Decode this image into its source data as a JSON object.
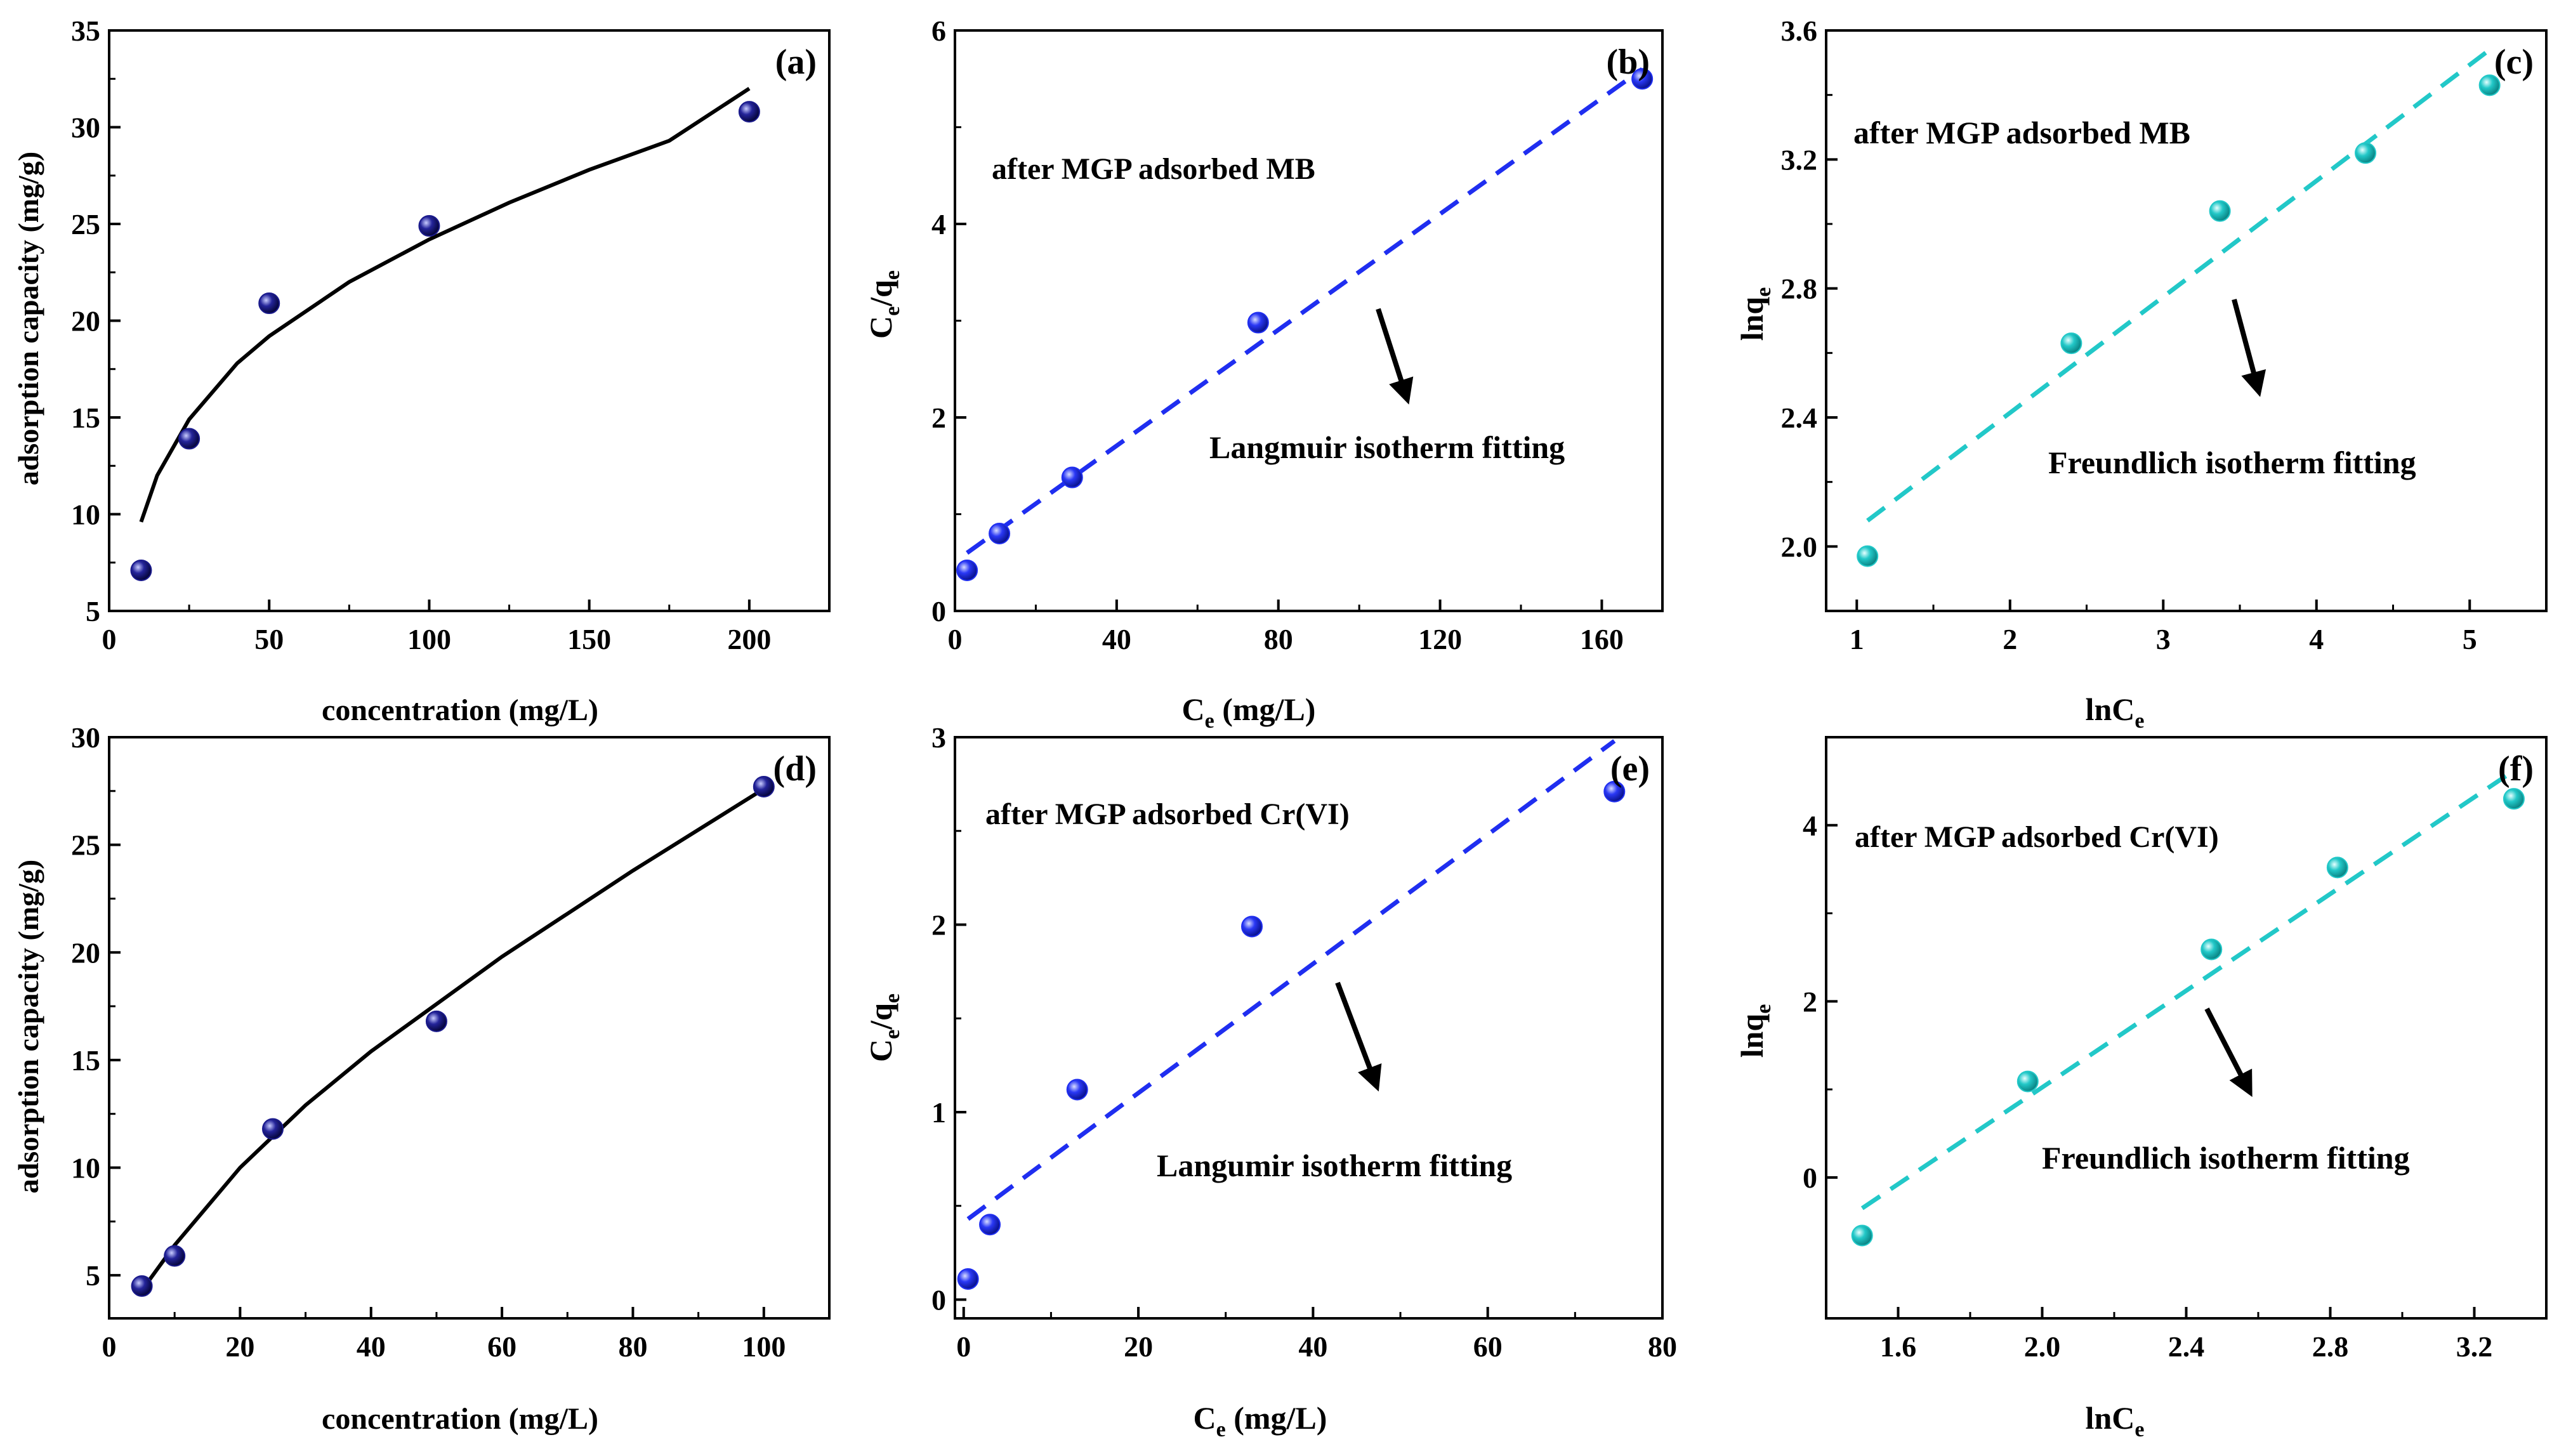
{
  "figure": {
    "colors": {
      "navy": "#1a1a8c",
      "blue": "#1f2ef0",
      "cyan": "#22c8c8",
      "axis": "#000000"
    }
  },
  "chart_data": [
    {
      "id": "a",
      "type": "scatter",
      "panel_label": "(a)",
      "xlabel": "concentration (mg/L)",
      "ylabel": "adsorption capacity (mg/g)",
      "xlim": [
        0,
        225
      ],
      "ylim": [
        5,
        35
      ],
      "xticks": [
        0,
        50,
        100,
        150,
        200
      ],
      "yticks": [
        5,
        10,
        15,
        20,
        25,
        30,
        35
      ],
      "xtick_labels": [
        "0",
        "50",
        "100",
        "150",
        "200"
      ],
      "ytick_labels": [
        "5",
        "10",
        "15",
        "20",
        "25",
        "30",
        "35"
      ],
      "points": [
        [
          10,
          7.1
        ],
        [
          25,
          13.9
        ],
        [
          50,
          20.9
        ],
        [
          100,
          24.9
        ],
        [
          200,
          30.8
        ]
      ],
      "marker_color": "navy",
      "fit": {
        "style": "solid",
        "color": "axis",
        "points": [
          [
            10,
            9.6
          ],
          [
            15,
            12.0
          ],
          [
            25,
            14.9
          ],
          [
            40,
            17.8
          ],
          [
            50,
            19.2
          ],
          [
            75,
            22.0
          ],
          [
            100,
            24.2
          ],
          [
            125,
            26.1
          ],
          [
            150,
            27.8
          ],
          [
            175,
            29.3
          ],
          [
            200,
            32.0
          ]
        ]
      },
      "annotations": []
    },
    {
      "id": "b",
      "type": "scatter",
      "panel_label": "(b)",
      "xlabel": "Ce (mg/L)",
      "ylabel": "Ce/qe",
      "xlim": [
        0,
        175
      ],
      "ylim": [
        0,
        6
      ],
      "xticks": [
        0,
        40,
        80,
        120,
        160
      ],
      "yticks": [
        0,
        2,
        4,
        6
      ],
      "xtick_labels": [
        "0",
        "40",
        "80",
        "120",
        "160"
      ],
      "ytick_labels": [
        "0",
        "2",
        "4",
        "6"
      ],
      "points": [
        [
          3,
          0.42
        ],
        [
          11,
          0.8
        ],
        [
          29,
          1.38
        ],
        [
          75,
          2.98
        ],
        [
          170,
          5.5
        ]
      ],
      "marker_color": "blue",
      "fit": {
        "style": "dashed",
        "color": "blue",
        "points": [
          [
            3,
            0.6
          ],
          [
            170,
            5.6
          ]
        ]
      },
      "annotations": [
        "after MGP adsorbed MB",
        "Langmuir isotherm fitting"
      ]
    },
    {
      "id": "c",
      "type": "scatter",
      "panel_label": "(c)",
      "xlabel": "lnCe",
      "ylabel": "lnqe",
      "xlim": [
        0.8,
        5.5
      ],
      "ylim": [
        1.8,
        3.6
      ],
      "xticks": [
        1,
        2,
        3,
        4,
        5
      ],
      "yticks": [
        2.0,
        2.4,
        2.8,
        3.2,
        3.6
      ],
      "xtick_labels": [
        "1",
        "2",
        "3",
        "4",
        "5"
      ],
      "ytick_labels": [
        "2.0",
        "2.4",
        "2.8",
        "3.2",
        "3.6"
      ],
      "points": [
        [
          1.07,
          1.97
        ],
        [
          2.4,
          2.63
        ],
        [
          3.37,
          3.04
        ],
        [
          4.32,
          3.22
        ],
        [
          5.13,
          3.43
        ]
      ],
      "marker_color": "cyan",
      "fit": {
        "style": "dashed",
        "color": "cyan",
        "points": [
          [
            1.07,
            2.08
          ],
          [
            5.13,
            3.54
          ]
        ]
      },
      "annotations": [
        "after MGP adsorbed MB",
        "Freundlich isotherm fitting"
      ]
    },
    {
      "id": "d",
      "type": "scatter",
      "panel_label": "(d)",
      "xlabel": "concentration (mg/L)",
      "ylabel": "adsorption capacity (mg/g)",
      "xlim": [
        0,
        110
      ],
      "ylim": [
        3,
        30
      ],
      "xticks": [
        0,
        20,
        40,
        60,
        80,
        100
      ],
      "yticks": [
        5,
        10,
        15,
        20,
        25,
        30
      ],
      "xtick_labels": [
        "0",
        "20",
        "40",
        "60",
        "80",
        "100"
      ],
      "ytick_labels": [
        "5",
        "10",
        "15",
        "20",
        "25",
        "30"
      ],
      "points": [
        [
          5,
          4.5
        ],
        [
          10,
          5.9
        ],
        [
          25,
          11.8
        ],
        [
          50,
          16.8
        ],
        [
          100,
          27.7
        ]
      ],
      "marker_color": "navy",
      "fit": {
        "style": "solid",
        "color": "axis",
        "points": [
          [
            5,
            4.3
          ],
          [
            10,
            6.4
          ],
          [
            20,
            10.0
          ],
          [
            30,
            12.9
          ],
          [
            40,
            15.4
          ],
          [
            50,
            17.6
          ],
          [
            60,
            19.8
          ],
          [
            70,
            21.8
          ],
          [
            80,
            23.8
          ],
          [
            90,
            25.7
          ],
          [
            100,
            27.6
          ]
        ]
      },
      "annotations": []
    },
    {
      "id": "e",
      "type": "scatter",
      "panel_label": "(e)",
      "xlabel": "Ce (mg/L)",
      "ylabel": "Ce/qe",
      "xlim": [
        -1,
        80
      ],
      "ylim": [
        -0.1,
        3
      ],
      "xticks": [
        0,
        20,
        40,
        60,
        80
      ],
      "yticks": [
        0,
        1,
        2,
        3
      ],
      "xtick_labels": [
        "0",
        "20",
        "40",
        "60",
        "80"
      ],
      "ytick_labels": [
        "0",
        "1",
        "2",
        "3"
      ],
      "points": [
        [
          0.5,
          0.11
        ],
        [
          3,
          0.4
        ],
        [
          13,
          1.12
        ],
        [
          33,
          1.99
        ],
        [
          74.5,
          2.71
        ]
      ],
      "marker_color": "blue",
      "fit": {
        "style": "dashed",
        "color": "blue",
        "points": [
          [
            0.5,
            0.43
          ],
          [
            74.5,
            2.98
          ]
        ]
      },
      "annotations": [
        "after MGP adsorbed Cr(VI)",
        "Langumir isotherm fitting"
      ]
    },
    {
      "id": "f",
      "type": "scatter",
      "panel_label": "(f)",
      "xlabel": "lnCe",
      "ylabel": "lnqe",
      "xlim": [
        1.4,
        3.4
      ],
      "ylim": [
        -1.6,
        5
      ],
      "xticks": [
        1.6,
        2.0,
        2.4,
        2.8,
        3.2
      ],
      "yticks": [
        0,
        2,
        4
      ],
      "xtick_labels": [
        "1.6",
        "2.0",
        "2.4",
        "2.8",
        "3.2"
      ],
      "ytick_labels": [
        "0",
        "2",
        "4"
      ],
      "points": [
        [
          1.5,
          -0.66
        ],
        [
          1.96,
          1.09
        ],
        [
          2.47,
          2.59
        ],
        [
          2.82,
          3.52
        ],
        [
          3.31,
          4.3
        ]
      ],
      "marker_color": "cyan",
      "fit": {
        "style": "dashed",
        "color": "cyan",
        "points": [
          [
            1.5,
            -0.35
          ],
          [
            3.31,
            4.62
          ]
        ]
      },
      "annotations": [
        "after MGP adsorbed Cr(VI)",
        "Freundlich isotherm fitting"
      ]
    }
  ]
}
